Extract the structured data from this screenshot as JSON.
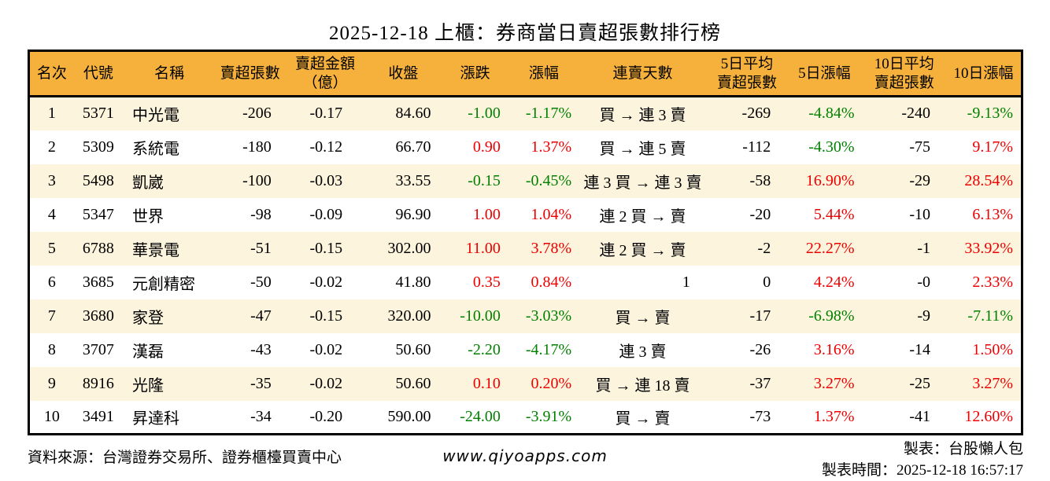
{
  "title": "2025-12-18 上櫃：券商當日賣超張數排行榜",
  "colors": {
    "up_red": "#ee0000",
    "down_green": "#008000",
    "header_bg": "#f6b13c",
    "row_stripe_bg": "#fcf4dc"
  },
  "chart_data": {
    "type": "table",
    "columns": [
      {
        "key": "rank",
        "label": "名次"
      },
      {
        "key": "code",
        "label": "代號"
      },
      {
        "key": "name",
        "label": "名稱"
      },
      {
        "key": "sell_volume",
        "label": "賣超張數"
      },
      {
        "key": "sell_amount",
        "label": "賣超金額",
        "label2": "（億）"
      },
      {
        "key": "close",
        "label": "收盤"
      },
      {
        "key": "change",
        "label": "漲跌"
      },
      {
        "key": "change_pct",
        "label": "漲幅"
      },
      {
        "key": "streak",
        "label": "連賣天數"
      },
      {
        "key": "avg5",
        "label": "5日平均",
        "label2": "賣超張數"
      },
      {
        "key": "pct5",
        "label": "5日漲幅"
      },
      {
        "key": "avg10",
        "label": "10日平均",
        "label2": "賣超張數"
      },
      {
        "key": "pct10",
        "label": "10日漲幅"
      }
    ],
    "rows": [
      [
        "1",
        "5371",
        "中光電",
        "-206",
        "-0.17",
        "84.60",
        "-1.00",
        "-1.17%",
        "買 → 連 3 賣",
        "-269",
        "-4.84%",
        "-240",
        "-9.13%"
      ],
      [
        "2",
        "5309",
        "系統電",
        "-180",
        "-0.12",
        "66.70",
        "0.90",
        "1.37%",
        "買 → 連 5 賣",
        "-112",
        "-4.30%",
        "-75",
        "9.17%"
      ],
      [
        "3",
        "5498",
        "凱崴",
        "-100",
        "-0.03",
        "33.55",
        "-0.15",
        "-0.45%",
        "連 3 買 → 連 3 賣",
        "-58",
        "16.90%",
        "-29",
        "28.54%"
      ],
      [
        "4",
        "5347",
        "世界",
        "-98",
        "-0.09",
        "96.90",
        "1.00",
        "1.04%",
        "連 2 買 → 賣",
        "-20",
        "5.44%",
        "-10",
        "6.13%"
      ],
      [
        "5",
        "6788",
        "華景電",
        "-51",
        "-0.15",
        "302.00",
        "11.00",
        "3.78%",
        "連 2 買 → 賣",
        "-2",
        "22.27%",
        "-1",
        "33.92%"
      ],
      [
        "6",
        "3685",
        "元創精密",
        "-50",
        "-0.02",
        "41.80",
        "0.35",
        "0.84%",
        "1",
        "0",
        "4.24%",
        "-0",
        "2.33%"
      ],
      [
        "7",
        "3680",
        "家登",
        "-47",
        "-0.15",
        "320.00",
        "-10.00",
        "-3.03%",
        "買 → 賣",
        "-17",
        "-6.98%",
        "-9",
        "-7.11%"
      ],
      [
        "8",
        "3707",
        "漢磊",
        "-43",
        "-0.02",
        "50.60",
        "-2.20",
        "-4.17%",
        "連 3 賣",
        "-26",
        "3.16%",
        "-14",
        "1.50%"
      ],
      [
        "9",
        "8916",
        "光隆",
        "-35",
        "-0.02",
        "50.60",
        "0.10",
        "0.20%",
        "買 → 連 18 賣",
        "-37",
        "3.27%",
        "-25",
        "3.27%"
      ],
      [
        "10",
        "3491",
        "昇達科",
        "-34",
        "-0.20",
        "590.00",
        "-24.00",
        "-3.91%",
        "買 → 賣",
        "-73",
        "1.37%",
        "-41",
        "12.60%"
      ]
    ]
  },
  "footer": {
    "source": "資料來源：台灣證券交易所、證券櫃檯買賣中心",
    "website": "www.qiyoapps.com",
    "maker": "製表：台股懶人包",
    "made_at": "製表時間：2025-12-18 16:57:17"
  }
}
